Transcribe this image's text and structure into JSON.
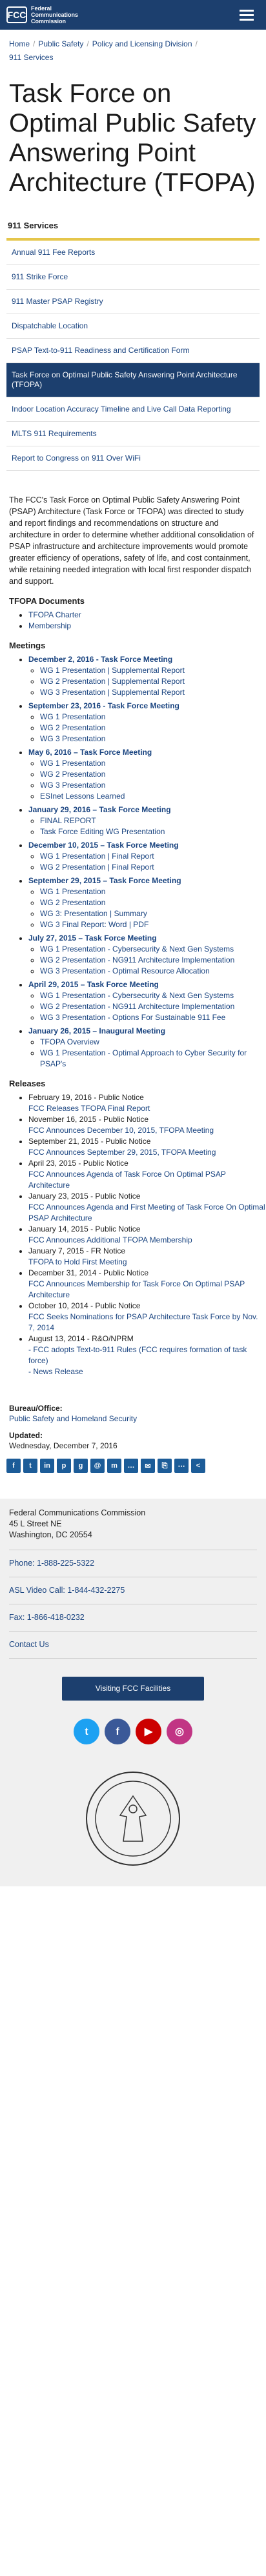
{
  "header": {
    "logo_mark": "FCC",
    "logo_line1": "Federal",
    "logo_line2": "Communications",
    "logo_line3": "Commission"
  },
  "breadcrumb": [
    "Home",
    "Public Safety",
    "Policy and Licensing Division",
    "911 Services"
  ],
  "page_title": "Task Force on Optimal Public Safety Answering Point Architecture (TFOPA)",
  "side_nav": {
    "title": "911 Services",
    "items": [
      "Annual 911 Fee Reports",
      "911 Strike Force",
      "911 Master PSAP Registry",
      "Dispatchable Location",
      "PSAP Text-to-911 Readiness and Certification Form",
      "Task Force on Optimal Public Safety Answering Point Architecture (TFOPA)",
      "Indoor Location Accuracy Timeline and Live Call Data Reporting",
      "MLTS 911 Requirements",
      "Report to Congress on 911 Over WiFi"
    ]
  },
  "intro": "The FCC's Task Force on Optimal Public Safety Answering Point (PSAP) Architecture (Task Force or TFOPA) was directed to study and report findings and recommendations on structure and architecture in order to determine whether additional consolidation of PSAP infrastructure and architecture improvements would promote greater efficiency of operations, safety of life, and cost containment, while retaining needed integration with local first responder dispatch and support.",
  "documents": {
    "heading": "TFOPA Documents",
    "items": [
      "TFOPA Charter",
      "Membership"
    ]
  },
  "meetings": {
    "heading": "Meetings",
    "list": [
      {
        "title": "December 2, 2016 - Task Force Meeting",
        "items": [
          "WG 1 Presentation | Supplemental Report",
          "WG 2 Presentation | Supplemental Report",
          "WG 3 Presentation | Supplemental Report"
        ]
      },
      {
        "title": "September 23, 2016 - Task Force Meeting",
        "items": [
          "WG 1 Presentation",
          "WG 2 Presentation",
          "WG 3 Presentation"
        ]
      },
      {
        "title": "May 6, 2016 – Task Force Meeting",
        "items": [
          "WG 1 Presentation",
          "WG 2 Presentation",
          "WG 3 Presentation",
          "ESInet Lessons Learned"
        ]
      },
      {
        "title": "January 29, 2016 – Task Force Meeting",
        "items": [
          "FINAL REPORT",
          "Task Force Editing WG Presentation"
        ]
      },
      {
        "title": "December 10, 2015 – Task Force Meeting",
        "items": [
          "WG 1 Presentation | Final Report",
          "WG 2 Presentation | Final Report"
        ]
      },
      {
        "title": "September 29, 2015 – Task Force Meeting",
        "items": [
          "WG 1 Presentation",
          "WG 2 Presentation",
          "WG 3: Presentation | Summary",
          "WG 3 Final Report: Word | PDF"
        ]
      },
      {
        "title": "July 27, 2015 – Task Force Meeting",
        "items": [
          "WG 1 Presentation - Cybersecurity & Next Gen Systems",
          "WG 2 Presentation - NG911 Architecture Implementation",
          "WG 3 Presentation - Optimal Resource Allocation"
        ]
      },
      {
        "title": "April 29, 2015 – Task Force Meeting",
        "items": [
          "WG 1 Presentation - Cybersecurity & Next Gen Systems",
          "WG 2 Presentation - NG911 Architecture Implementation",
          "WG 3 Presentation - Options For Sustainable 911 Fee"
        ]
      },
      {
        "title": "January 26, 2015 – Inaugural Meeting",
        "items": [
          "TFOPA Overview",
          "WG 1 Presentation - Optimal Approach to Cyber Security for PSAP's"
        ]
      }
    ]
  },
  "releases": {
    "heading": "Releases",
    "list": [
      {
        "date": "February 19, 2016 - Public Notice",
        "link": "FCC Releases TFOPA Final Report"
      },
      {
        "date": "November 16, 2015 - Public Notice",
        "link": "FCC Announces December 10, 2015, TFOPA Meeting"
      },
      {
        "date": "September 21, 2015 - Public Notice",
        "link": "FCC Announces September 29, 2015, TFOPA Meeting"
      },
      {
        "date": "April 23, 2015 - Public Notice",
        "link": "FCC Announces Agenda of Task Force On Optimal PSAP Architecture"
      },
      {
        "date": "January 23, 2015 - Public Notice",
        "link": "FCC Announces Agenda and First Meeting of Task Force On Optimal PSAP Architecture"
      },
      {
        "date": "January 14, 2015 - Public Notice",
        "link": "FCC Announces Additional TFOPA Membership"
      },
      {
        "date": "January 7, 2015 - FR Notice",
        "link": "TFOPA to Hold First Meeting"
      },
      {
        "date": "December 31, 2014 - Public Notice",
        "link": "FCC Announces Membership for Task Force On Optimal PSAP Architecture"
      },
      {
        "date": "October 10, 2014 - Public Notice",
        "link": "FCC Seeks Nominations for PSAP Architecture Task Force by Nov. 7, 2014"
      },
      {
        "date": "August 13, 2014 - R&O/NPRM",
        "link": "- FCC adopts Text-to-911 Rules (FCC requires formation of task force)",
        "extra": "- News Release"
      }
    ]
  },
  "bureau": {
    "label": "Bureau/Office:",
    "value": "Public Safety and Homeland Security"
  },
  "updated": {
    "label": "Updated:",
    "value": "Wednesday, December 7, 2016"
  },
  "share_icons": [
    "f",
    "t",
    "in",
    "p",
    "g",
    "@",
    "m",
    "…",
    "✉",
    "⎘",
    "⋯",
    "<"
  ],
  "footer": {
    "org": "Federal Communications Commission",
    "street": "45 L Street NE",
    "city": "Washington, DC 20554",
    "phone": "Phone: 1-888-225-5322",
    "asl": "ASL Video Call: 1-844-432-2275",
    "fax": "Fax: 1-866-418-0232",
    "contact": "Contact Us",
    "visit": "Visiting FCC Facilities"
  },
  "social": {
    "twitter": "t",
    "facebook": "f",
    "youtube": "▶",
    "instagram": "◎"
  },
  "colors": {
    "header_bg": "#1c3f6e",
    "accent_gold": "#e5c64b",
    "link": "#1a4480",
    "active_nav_bg": "#1c3f6e"
  }
}
